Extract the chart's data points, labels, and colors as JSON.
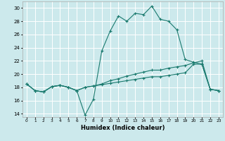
{
  "xlabel": "Humidex (Indice chaleur)",
  "bg_color": "#cce9ec",
  "grid_color": "#ffffff",
  "line_color": "#1a7a6e",
  "xlim": [
    -0.5,
    23.5
  ],
  "ylim": [
    13.5,
    31.0
  ],
  "xticks": [
    0,
    1,
    2,
    3,
    4,
    5,
    6,
    7,
    8,
    9,
    10,
    11,
    12,
    13,
    14,
    15,
    16,
    17,
    18,
    19,
    20,
    21,
    22,
    23
  ],
  "yticks": [
    14,
    16,
    18,
    20,
    22,
    24,
    26,
    28,
    30
  ],
  "series": [
    [
      18.5,
      17.5,
      17.3,
      18.1,
      18.3,
      18.0,
      17.5,
      13.8,
      16.2,
      23.5,
      26.5,
      28.8,
      28.0,
      29.2,
      29.0,
      30.3,
      28.3,
      28.0,
      26.7,
      22.2,
      21.8,
      21.5,
      17.7,
      17.5
    ],
    [
      18.5,
      17.5,
      17.3,
      18.1,
      18.3,
      18.0,
      17.5,
      18.0,
      18.2,
      18.5,
      19.0,
      19.3,
      19.7,
      20.0,
      20.3,
      20.6,
      20.6,
      20.9,
      21.1,
      21.3,
      21.7,
      22.0,
      17.7,
      17.5
    ],
    [
      18.5,
      17.5,
      17.3,
      18.1,
      18.3,
      18.0,
      17.5,
      18.0,
      18.2,
      18.4,
      18.6,
      18.8,
      19.0,
      19.2,
      19.4,
      19.6,
      19.6,
      19.8,
      20.0,
      20.2,
      21.5,
      21.5,
      17.7,
      17.5
    ]
  ]
}
